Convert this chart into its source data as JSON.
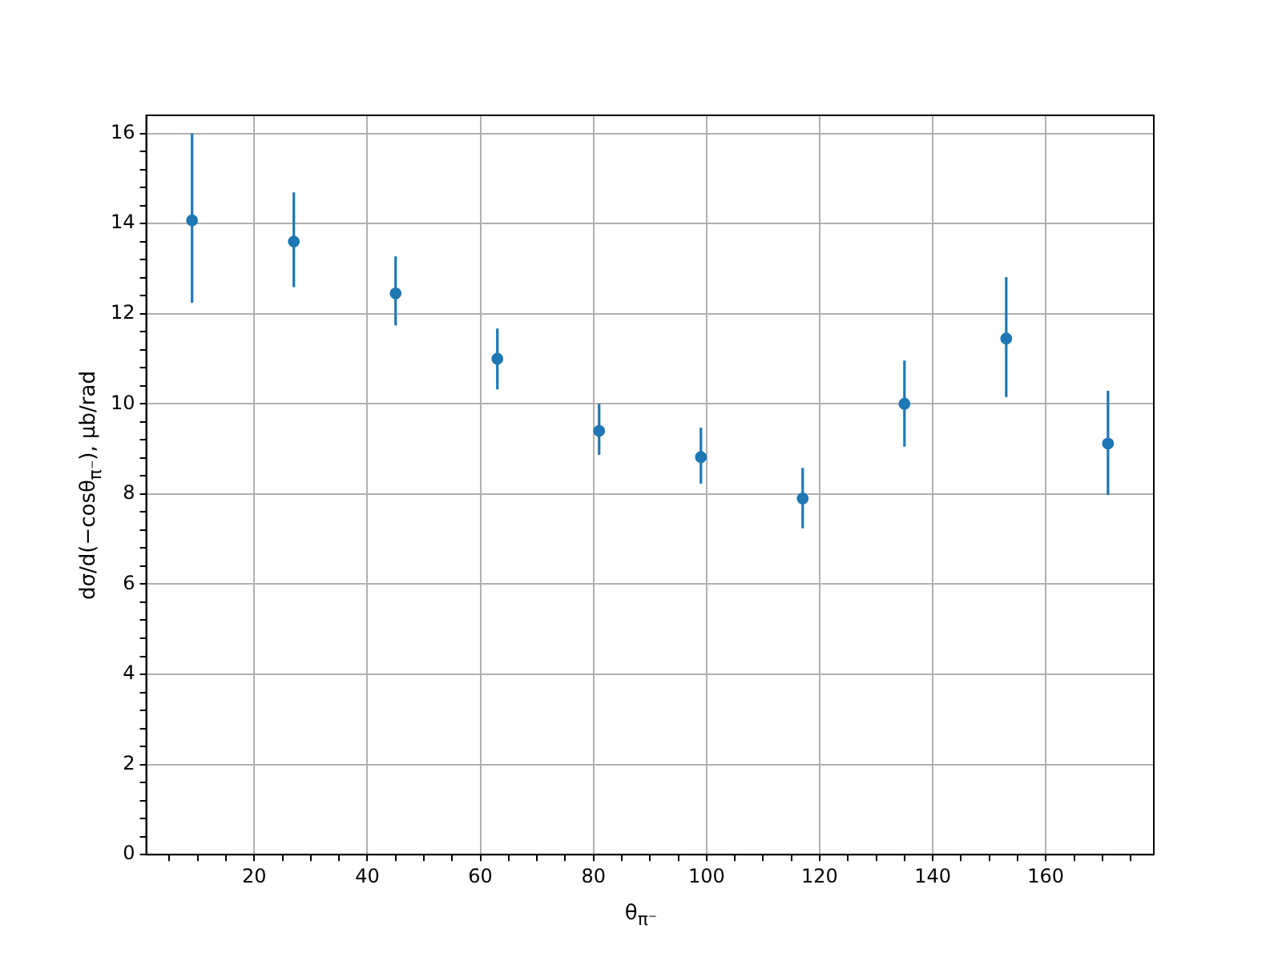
{
  "chart_data": {
    "type": "scatter",
    "xlabel": "θ$_{π⁻}$",
    "ylabel": "dσ/d(−cosθ$_{π⁻}$), μb/rad",
    "x": [
      9,
      27,
      45,
      63,
      81,
      99,
      117,
      135,
      153,
      171
    ],
    "series": [
      {
        "color": "#1f77b4",
        "values": [
          14.07,
          13.6,
          12.45,
          11.0,
          9.4,
          8.82,
          7.9,
          10.0,
          11.45,
          9.12
        ],
        "errors": [
          [
            12.24,
            16.0
          ],
          [
            12.59,
            14.69
          ],
          [
            11.74,
            13.27
          ],
          [
            10.32,
            11.67
          ],
          [
            8.87,
            10.0
          ],
          [
            8.23,
            9.47
          ],
          [
            7.24,
            8.58
          ],
          [
            9.05,
            10.96
          ],
          [
            10.15,
            12.81
          ],
          [
            7.98,
            10.29
          ]
        ]
      }
    ],
    "xlim": [
      0.9,
      179.1
    ],
    "ylim": [
      0,
      16.4
    ],
    "xticks": [
      {
        "value": 5,
        "label": null
      },
      {
        "value": 10,
        "label": null
      },
      {
        "value": 15,
        "label": null
      },
      20,
      {
        "value": 25,
        "label": null
      },
      {
        "value": 30,
        "label": null
      },
      {
        "value": 35,
        "label": null
      },
      40,
      {
        "value": 45,
        "label": null
      },
      {
        "value": 50,
        "label": null
      },
      {
        "value": 55,
        "label": null
      },
      60,
      {
        "value": 65,
        "label": null
      },
      {
        "value": 70,
        "label": null
      },
      {
        "value": 75,
        "label": null
      },
      80,
      {
        "value": 85,
        "label": null
      },
      {
        "value": 90,
        "label": null
      },
      {
        "value": 95,
        "label": null
      },
      100,
      {
        "value": 105,
        "label": null
      },
      {
        "value": 110,
        "label": null
      },
      {
        "value": 115,
        "label": null
      },
      120,
      {
        "value": 125,
        "label": null
      },
      {
        "value": 130,
        "label": null
      },
      {
        "value": 135,
        "label": null
      },
      140,
      {
        "value": 145,
        "label": null
      },
      {
        "value": 150,
        "label": null
      },
      {
        "value": 155,
        "label": null
      },
      160,
      {
        "value": 165,
        "label": null
      },
      {
        "value": 170,
        "label": null
      },
      {
        "value": 175,
        "label": null
      }
    ],
    "yticks": [
      0,
      {
        "value": 0.4,
        "label": null
      },
      {
        "value": 0.8,
        "label": null
      },
      {
        "value": 1.2,
        "label": null
      },
      {
        "value": 1.6,
        "label": null
      },
      2,
      {
        "value": 2.4,
        "label": null
      },
      {
        "value": 2.8,
        "label": null
      },
      {
        "value": 3.2,
        "label": null
      },
      {
        "value": 3.6,
        "label": null
      },
      4,
      {
        "value": 4.4,
        "label": null
      },
      {
        "value": 4.8,
        "label": null
      },
      {
        "value": 5.2,
        "label": null
      },
      {
        "value": 5.6,
        "label": null
      },
      6,
      {
        "value": 6.4,
        "label": null
      },
      {
        "value": 6.8,
        "label": null
      },
      {
        "value": 7.2,
        "label": null
      },
      {
        "value": 7.6,
        "label": null
      },
      8,
      {
        "value": 8.4,
        "label": null
      },
      {
        "value": 8.8,
        "label": null
      },
      {
        "value": 9.2,
        "label": null
      },
      {
        "value": 9.6,
        "label": null
      },
      10,
      {
        "value": 10.4,
        "label": null
      },
      {
        "value": 10.8,
        "label": null
      },
      {
        "value": 11.2,
        "label": null
      },
      {
        "value": 11.6,
        "label": null
      },
      12,
      {
        "value": 12.4,
        "label": null
      },
      {
        "value": 12.8,
        "label": null
      },
      {
        "value": 13.2,
        "label": null
      },
      {
        "value": 13.6,
        "label": null
      },
      14,
      {
        "value": 14.4,
        "label": null
      },
      {
        "value": 14.8,
        "label": null
      },
      {
        "value": 15.2,
        "label": null
      },
      {
        "value": 15.6,
        "label": null
      },
      16
    ],
    "grid": true,
    "marker": "circle",
    "legend": false
  }
}
